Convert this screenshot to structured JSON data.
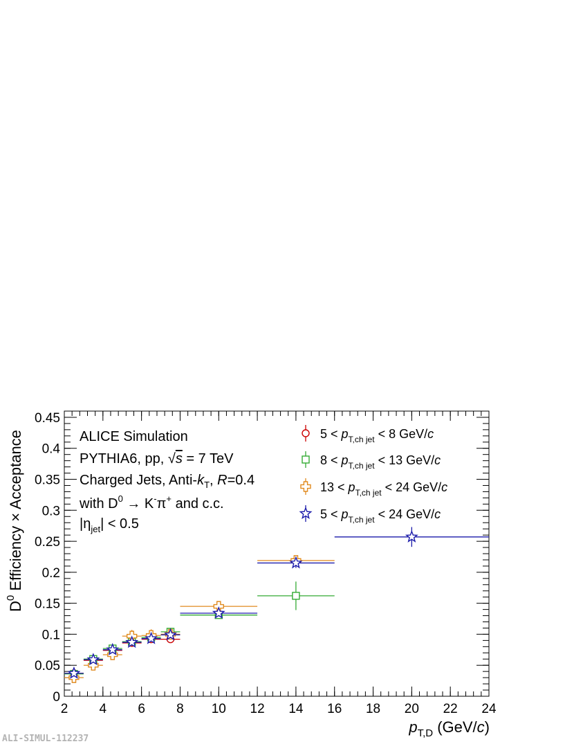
{
  "chart_data": {
    "type": "scatter",
    "xlabel": {
      "var": "p",
      "sub": "T,D",
      "unit_pre": " (GeV/",
      "unit_var": "c",
      "unit_post": ")"
    },
    "ylabel": {
      "base": "D",
      "sup": "0",
      "rest": " Efficiency × Acceptance"
    },
    "xlim": [
      2,
      24
    ],
    "ylim": [
      0,
      0.46
    ],
    "xticks": [
      "2",
      "4",
      "6",
      "8",
      "10",
      "12",
      "14",
      "16",
      "18",
      "20",
      "22",
      "24"
    ],
    "yticks": [
      "0",
      "0.05",
      "0.1",
      "0.15",
      "0.2",
      "0.25",
      "0.3",
      "0.35",
      "0.4",
      "0.45"
    ],
    "annotations": {
      "line1": "ALICE Simulation",
      "line2_a": "PYTHIA6, pp, ",
      "line2_sqrt": "√",
      "line2_s": "s",
      "line2_b": " = 7 TeV",
      "line3_a": "Charged Jets, Anti-",
      "line3_k": "k",
      "line3_ksub": "T",
      "line3_b": ", ",
      "line3_R": "R",
      "line3_c": "=0.4",
      "line4_a": "with D",
      "line4_sup0": "0",
      "line4_b": " → K",
      "line4_supm": "-",
      "line4_c": "π",
      "line4_supp": "+",
      "line4_d": " and c.c.",
      "line5_a": "|η",
      "line5_sub": "jet",
      "line5_b": "| < 0.5"
    },
    "series": [
      {
        "name_pre": "5 < ",
        "name_var": "p",
        "name_sub": "T,ch jet",
        "name_post": " < 8 GeV/",
        "name_unit": "c",
        "color": "#cc0000",
        "marker": "circle",
        "points": [
          {
            "x": 2.5,
            "xerr": 0.5,
            "y": 0.037,
            "yerr": 0.004
          },
          {
            "x": 3.5,
            "xerr": 0.5,
            "y": 0.058,
            "yerr": 0.004
          },
          {
            "x": 4.5,
            "xerr": 0.5,
            "y": 0.074,
            "yerr": 0.005
          },
          {
            "x": 5.5,
            "xerr": 0.5,
            "y": 0.086,
            "yerr": 0.005
          },
          {
            "x": 6.5,
            "xerr": 0.5,
            "y": 0.092,
            "yerr": 0.006
          },
          {
            "x": 7.5,
            "xerr": 0.5,
            "y": 0.092,
            "yerr": 0.006
          }
        ]
      },
      {
        "name_pre": "8 < ",
        "name_var": "p",
        "name_sub": "T,ch jet",
        "name_post": " < 13 GeV/",
        "name_unit": "c",
        "color": "#33aa33",
        "marker": "square",
        "points": [
          {
            "x": 2.5,
            "xerr": 0.5,
            "y": 0.036,
            "yerr": 0.004
          },
          {
            "x": 3.5,
            "xerr": 0.5,
            "y": 0.06,
            "yerr": 0.004
          },
          {
            "x": 4.5,
            "xerr": 0.5,
            "y": 0.077,
            "yerr": 0.005
          },
          {
            "x": 5.5,
            "xerr": 0.5,
            "y": 0.088,
            "yerr": 0.005
          },
          {
            "x": 6.5,
            "xerr": 0.5,
            "y": 0.095,
            "yerr": 0.005
          },
          {
            "x": 7.5,
            "xerr": 0.5,
            "y": 0.104,
            "yerr": 0.006
          },
          {
            "x": 10,
            "xerr": 2,
            "y": 0.131,
            "yerr": 0.006
          },
          {
            "x": 14,
            "xerr": 2,
            "y": 0.162,
            "yerr": 0.023
          }
        ]
      },
      {
        "name_pre": "13 < ",
        "name_var": "p",
        "name_sub": "T,ch jet",
        "name_post": " < 24 GeV/",
        "name_unit": "c",
        "color": "#e08a1e",
        "marker": "cross",
        "points": [
          {
            "x": 2.5,
            "xerr": 0.5,
            "y": 0.03,
            "yerr": 0.006
          },
          {
            "x": 3.5,
            "xerr": 0.5,
            "y": 0.05,
            "yerr": 0.006
          },
          {
            "x": 4.5,
            "xerr": 0.5,
            "y": 0.067,
            "yerr": 0.007
          },
          {
            "x": 5.5,
            "xerr": 0.5,
            "y": 0.097,
            "yerr": 0.01
          },
          {
            "x": 6.5,
            "xerr": 0.5,
            "y": 0.098,
            "yerr": 0.01
          },
          {
            "x": 7.5,
            "xerr": 0.5,
            "y": 0.1,
            "yerr": 0.008
          },
          {
            "x": 10,
            "xerr": 2,
            "y": 0.145,
            "yerr": 0.006
          },
          {
            "x": 14,
            "xerr": 2,
            "y": 0.219,
            "yerr": 0.008
          }
        ]
      },
      {
        "name_pre": "5 < ",
        "name_var": "p",
        "name_sub": "T,ch jet",
        "name_post": " < 24 GeV/",
        "name_unit": "c",
        "color": "#1a1aaa",
        "marker": "star",
        "points": [
          {
            "x": 2.5,
            "xerr": 0.5,
            "y": 0.037,
            "yerr": 0.004
          },
          {
            "x": 3.5,
            "xerr": 0.5,
            "y": 0.059,
            "yerr": 0.004
          },
          {
            "x": 4.5,
            "xerr": 0.5,
            "y": 0.075,
            "yerr": 0.004
          },
          {
            "x": 5.5,
            "xerr": 0.5,
            "y": 0.087,
            "yerr": 0.004
          },
          {
            "x": 6.5,
            "xerr": 0.5,
            "y": 0.093,
            "yerr": 0.004
          },
          {
            "x": 7.5,
            "xerr": 0.5,
            "y": 0.099,
            "yerr": 0.005
          },
          {
            "x": 10,
            "xerr": 2,
            "y": 0.134,
            "yerr": 0.005
          },
          {
            "x": 14,
            "xerr": 2,
            "y": 0.215,
            "yerr": 0.008
          },
          {
            "x": 20,
            "xerr": 4,
            "y": 0.257,
            "yerr": 0.016
          }
        ]
      }
    ],
    "legend_position": "top-right",
    "grid": false
  },
  "watermark": "ALI-SIMUL-112237"
}
